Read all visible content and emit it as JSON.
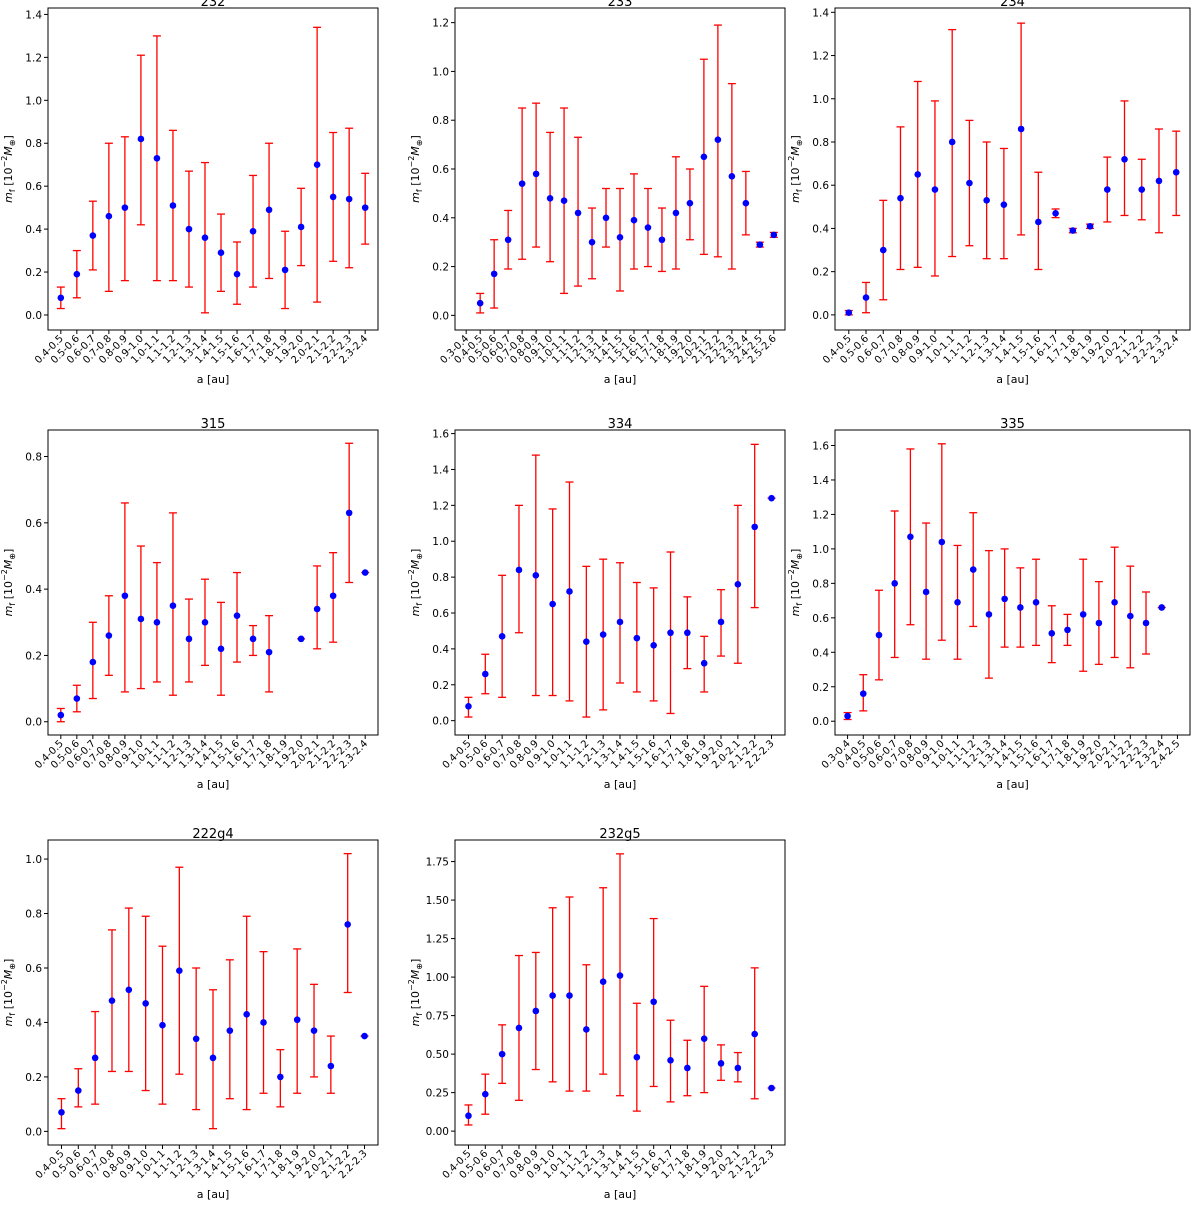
{
  "style": {
    "point_color": "#0000ff",
    "errorbar_color": "#ff0000",
    "axis_color": "#000000"
  },
  "chart_data": [
    {
      "type": "scatter",
      "title": "232",
      "xlabel": "a [au]",
      "ylabel": [
        {
          "t": "m",
          "s": "i"
        },
        {
          "t": "f",
          "s": "sub"
        },
        {
          "t": " [10"
        },
        {
          "t": "−2",
          "s": "sup"
        },
        {
          "t": "M",
          "s": "i"
        },
        {
          "t": "⊕",
          "s": "sub"
        },
        {
          "t": "]"
        }
      ],
      "ylim": [
        -0.07,
        1.43
      ],
      "yticks": [
        0.0,
        0.2,
        0.4,
        0.6,
        0.8,
        1.0,
        1.2,
        1.4
      ],
      "ytick_fmt": 1,
      "categories": [
        "0.4-0.5",
        "0.5-0.6",
        "0.6-0.7",
        "0.7-0.8",
        "0.8-0.9",
        "0.9-1.0",
        "1.0-1.1",
        "1.1-1.2",
        "1.2-1.3",
        "1.3-1.4",
        "1.4-1.5",
        "1.5-1.6",
        "1.6-1.7",
        "1.7-1.8",
        "1.8-1.9",
        "1.9-2.0",
        "2.0-2.1",
        "2.1-2.2",
        "2.2-2.3",
        "2.3-2.4"
      ],
      "values": [
        0.08,
        0.19,
        0.37,
        0.46,
        0.5,
        0.82,
        0.73,
        0.51,
        0.4,
        0.36,
        0.29,
        0.19,
        0.39,
        0.49,
        0.21,
        0.41,
        0.7,
        0.55,
        0.54,
        0.5
      ],
      "lower": [
        0.03,
        0.08,
        0.21,
        0.11,
        0.16,
        0.42,
        0.16,
        0.16,
        0.13,
        0.01,
        0.11,
        0.05,
        0.13,
        0.17,
        0.03,
        0.23,
        0.06,
        0.25,
        0.22,
        0.33
      ],
      "upper": [
        0.13,
        0.3,
        0.53,
        0.8,
        0.83,
        1.21,
        1.3,
        0.86,
        0.67,
        0.71,
        0.47,
        0.34,
        0.65,
        0.8,
        0.39,
        0.59,
        1.34,
        0.85,
        0.87,
        0.66
      ]
    },
    {
      "type": "scatter",
      "title": "233",
      "xlabel": "a [au]",
      "ylabel": [
        {
          "t": "m",
          "s": "i"
        },
        {
          "t": "f",
          "s": "sub"
        },
        {
          "t": " [10"
        },
        {
          "t": "−2",
          "s": "sup"
        },
        {
          "t": "M",
          "s": "i"
        },
        {
          "t": "⊕",
          "s": "sub"
        },
        {
          "t": "]"
        }
      ],
      "ylim": [
        -0.06,
        1.26
      ],
      "yticks": [
        0.0,
        0.2,
        0.4,
        0.6,
        0.8,
        1.0,
        1.2
      ],
      "ytick_fmt": 1,
      "categories": [
        "0.3-0.4",
        "0.4-0.5",
        "0.5-0.6",
        "0.6-0.7",
        "0.7-0.8",
        "0.8-0.9",
        "0.9-1.0",
        "1.0-1.1",
        "1.1-1.2",
        "1.2-1.3",
        "1.3-1.4",
        "1.4-1.5",
        "1.5-1.6",
        "1.6-1.7",
        "1.7-1.8",
        "1.8-1.9",
        "1.9-2.0",
        "2.0-2.1",
        "2.1-2.2",
        "2.2-2.3",
        "2.3-2.4",
        "2.4-2.5",
        "2.5-2.6"
      ],
      "values": [
        null,
        0.05,
        0.17,
        0.31,
        0.54,
        0.58,
        0.48,
        0.47,
        0.42,
        0.3,
        0.4,
        0.32,
        0.39,
        0.36,
        0.31,
        0.42,
        0.46,
        0.65,
        0.72,
        0.57,
        0.46,
        0.29,
        0.33
      ],
      "lower": [
        null,
        0.01,
        0.03,
        0.19,
        0.23,
        0.28,
        0.22,
        0.09,
        0.12,
        0.15,
        0.28,
        0.1,
        0.19,
        0.2,
        0.18,
        0.19,
        0.31,
        0.25,
        0.24,
        0.19,
        0.33,
        0.28,
        0.32
      ],
      "upper": [
        null,
        0.09,
        0.31,
        0.43,
        0.85,
        0.87,
        0.75,
        0.85,
        0.73,
        0.44,
        0.52,
        0.52,
        0.58,
        0.52,
        0.44,
        0.65,
        0.6,
        1.05,
        1.19,
        0.95,
        0.59,
        0.3,
        0.34
      ]
    },
    {
      "type": "scatter",
      "title": "234",
      "xlabel": "a [au]",
      "ylabel": [
        {
          "t": "m",
          "s": "i"
        },
        {
          "t": "f",
          "s": "sub"
        },
        {
          "t": " [10"
        },
        {
          "t": "−2",
          "s": "sup"
        },
        {
          "t": "M",
          "s": "i"
        },
        {
          "t": "⊕",
          "s": "sub"
        },
        {
          "t": "]"
        }
      ],
      "ylim": [
        -0.07,
        1.42
      ],
      "yticks": [
        0.0,
        0.2,
        0.4,
        0.6,
        0.8,
        1.0,
        1.2,
        1.4
      ],
      "ytick_fmt": 1,
      "categories": [
        "0.4-0.5",
        "0.5-0.6",
        "0.6-0.7",
        "0.7-0.8",
        "0.8-0.9",
        "0.9-1.0",
        "1.0-1.1",
        "1.1-1.2",
        "1.2-1.3",
        "1.3-1.4",
        "1.4-1.5",
        "1.5-1.6",
        "1.6-1.7",
        "1.7-1.8",
        "1.8-1.9",
        "1.9-2.0",
        "2.0-2.1",
        "2.1-2.2",
        "2.2-2.3",
        "2.3-2.4"
      ],
      "values": [
        0.01,
        0.08,
        0.3,
        0.54,
        0.65,
        0.58,
        0.8,
        0.61,
        0.53,
        0.51,
        0.86,
        0.43,
        0.47,
        0.39,
        0.41,
        0.58,
        0.72,
        0.58,
        0.62,
        0.66
      ],
      "lower": [
        0.0,
        0.01,
        0.07,
        0.21,
        0.22,
        0.18,
        0.27,
        0.32,
        0.26,
        0.26,
        0.37,
        0.21,
        0.45,
        0.38,
        0.4,
        0.43,
        0.46,
        0.44,
        0.38,
        0.46
      ],
      "upper": [
        0.02,
        0.15,
        0.53,
        0.87,
        1.08,
        0.99,
        1.32,
        0.9,
        0.8,
        0.77,
        1.35,
        0.66,
        0.49,
        0.4,
        0.42,
        0.73,
        0.99,
        0.72,
        0.86,
        0.85
      ]
    },
    {
      "type": "scatter",
      "title": "315",
      "xlabel": "a [au]",
      "ylabel": [
        {
          "t": "m",
          "s": "i"
        },
        {
          "t": "f",
          "s": "sub"
        },
        {
          "t": " [10"
        },
        {
          "t": "−2",
          "s": "sup"
        },
        {
          "t": "M",
          "s": "i"
        },
        {
          "t": "⊕",
          "s": "sub"
        },
        {
          "t": "]"
        }
      ],
      "ylim": [
        -0.04,
        0.88
      ],
      "yticks": [
        0.0,
        0.2,
        0.4,
        0.6,
        0.8
      ],
      "ytick_fmt": 1,
      "categories": [
        "0.4-0.5",
        "0.5-0.6",
        "0.6-0.7",
        "0.7-0.8",
        "0.8-0.9",
        "0.9-1.0",
        "1.0-1.1",
        "1.1-1.2",
        "1.2-1.3",
        "1.3-1.4",
        "1.4-1.5",
        "1.5-1.6",
        "1.6-1.7",
        "1.7-1.8",
        "1.8-1.9",
        "1.9-2.0",
        "2.0-2.1",
        "2.1-2.2",
        "2.2-2.3",
        "2.3-2.4"
      ],
      "values": [
        0.02,
        0.07,
        0.18,
        0.26,
        0.38,
        0.31,
        0.3,
        0.35,
        0.25,
        0.3,
        0.22,
        0.32,
        0.25,
        0.21,
        null,
        0.25,
        0.34,
        0.38,
        0.63,
        0.45
      ],
      "lower": [
        0.0,
        0.03,
        0.07,
        0.14,
        0.09,
        0.1,
        0.12,
        0.08,
        0.12,
        0.17,
        0.08,
        0.18,
        0.2,
        0.09,
        null,
        0.25,
        0.22,
        0.24,
        0.42,
        0.45
      ],
      "upper": [
        0.04,
        0.11,
        0.3,
        0.38,
        0.66,
        0.53,
        0.48,
        0.63,
        0.37,
        0.43,
        0.36,
        0.45,
        0.29,
        0.32,
        null,
        0.25,
        0.47,
        0.51,
        0.84,
        0.45
      ]
    },
    {
      "type": "scatter",
      "title": "334",
      "xlabel": "a [au]",
      "ylabel": [
        {
          "t": "m",
          "s": "i"
        },
        {
          "t": "f",
          "s": "sub"
        },
        {
          "t": " [10"
        },
        {
          "t": "−2",
          "s": "sup"
        },
        {
          "t": "M",
          "s": "i"
        },
        {
          "t": "⊕",
          "s": "sub"
        },
        {
          "t": "]"
        }
      ],
      "ylim": [
        -0.08,
        1.62
      ],
      "yticks": [
        0.0,
        0.2,
        0.4,
        0.6,
        0.8,
        1.0,
        1.2,
        1.4,
        1.6
      ],
      "ytick_fmt": 1,
      "categories": [
        "0.4-0.5",
        "0.5-0.6",
        "0.6-0.7",
        "0.7-0.8",
        "0.8-0.9",
        "0.9-1.0",
        "1.0-1.1",
        "1.1-1.2",
        "1.2-1.3",
        "1.3-1.4",
        "1.4-1.5",
        "1.5-1.6",
        "1.6-1.7",
        "1.7-1.8",
        "1.8-1.9",
        "1.9-2.0",
        "2.0-2.1",
        "2.1-2.2",
        "2.2-2.3"
      ],
      "values": [
        0.08,
        0.26,
        0.47,
        0.84,
        0.81,
        0.65,
        0.72,
        0.44,
        0.48,
        0.55,
        0.46,
        0.42,
        0.49,
        0.49,
        0.32,
        0.55,
        0.76,
        1.08,
        1.24
      ],
      "lower": [
        0.02,
        0.15,
        0.13,
        0.49,
        0.14,
        0.14,
        0.11,
        0.02,
        0.06,
        0.21,
        0.16,
        0.11,
        0.04,
        0.29,
        0.16,
        0.36,
        0.32,
        0.63,
        1.24
      ],
      "upper": [
        0.13,
        0.37,
        0.81,
        1.2,
        1.48,
        1.18,
        1.33,
        0.86,
        0.9,
        0.88,
        0.77,
        0.74,
        0.94,
        0.69,
        0.47,
        0.73,
        1.2,
        1.54,
        1.24
      ]
    },
    {
      "type": "scatter",
      "title": "335",
      "xlabel": "a [au]",
      "ylabel": [
        {
          "t": "m",
          "s": "i"
        },
        {
          "t": "f",
          "s": "sub"
        },
        {
          "t": " [10"
        },
        {
          "t": "−2",
          "s": "sup"
        },
        {
          "t": "M",
          "s": "i"
        },
        {
          "t": "⊕",
          "s": "sub"
        },
        {
          "t": "]"
        }
      ],
      "ylim": [
        -0.08,
        1.69
      ],
      "yticks": [
        0.0,
        0.2,
        0.4,
        0.6,
        0.8,
        1.0,
        1.2,
        1.4,
        1.6
      ],
      "ytick_fmt": 1,
      "categories": [
        "0.3-0.4",
        "0.4-0.5",
        "0.5-0.6",
        "0.6-0.7",
        "0.7-0.8",
        "0.8-0.9",
        "0.9-1.0",
        "1.0-1.1",
        "1.1-1.2",
        "1.2-1.3",
        "1.3-1.4",
        "1.4-1.5",
        "1.5-1.6",
        "1.6-1.7",
        "1.7-1.8",
        "1.8-1.9",
        "1.9-2.0",
        "2.0-2.1",
        "2.1-2.2",
        "2.2-2.3",
        "2.3-2.4",
        "2.4-2.5"
      ],
      "values": [
        0.03,
        0.16,
        0.5,
        0.8,
        1.07,
        0.75,
        1.04,
        0.69,
        0.88,
        0.62,
        0.71,
        0.66,
        0.69,
        0.51,
        0.53,
        0.62,
        0.57,
        0.69,
        0.61,
        0.57,
        0.66,
        null
      ],
      "lower": [
        0.01,
        0.06,
        0.24,
        0.37,
        0.56,
        0.36,
        0.47,
        0.36,
        0.55,
        0.25,
        0.43,
        0.43,
        0.44,
        0.34,
        0.44,
        0.29,
        0.33,
        0.37,
        0.31,
        0.39,
        0.66,
        null
      ],
      "upper": [
        0.05,
        0.27,
        0.76,
        1.22,
        1.58,
        1.15,
        1.61,
        1.02,
        1.21,
        0.99,
        1.0,
        0.89,
        0.94,
        0.67,
        0.62,
        0.94,
        0.81,
        1.01,
        0.9,
        0.75,
        0.66,
        null
      ]
    },
    {
      "type": "scatter",
      "title": "222g4",
      "xlabel": "a [au]",
      "ylabel": [
        {
          "t": "m",
          "s": "i"
        },
        {
          "t": "f",
          "s": "sub"
        },
        {
          "t": " [10"
        },
        {
          "t": "−2",
          "s": "sup"
        },
        {
          "t": "M",
          "s": "i"
        },
        {
          "t": "⊕",
          "s": "sub"
        },
        {
          "t": "]"
        }
      ],
      "ylim": [
        -0.05,
        1.07
      ],
      "yticks": [
        0.0,
        0.2,
        0.4,
        0.6,
        0.8,
        1.0
      ],
      "ytick_fmt": 1,
      "categories": [
        "0.4-0.5",
        "0.5-0.6",
        "0.6-0.7",
        "0.7-0.8",
        "0.8-0.9",
        "0.9-1.0",
        "1.0-1.1",
        "1.1-1.2",
        "1.2-1.3",
        "1.3-1.4",
        "1.4-1.5",
        "1.5-1.6",
        "1.6-1.7",
        "1.7-1.8",
        "1.8-1.9",
        "1.9-2.0",
        "2.0-2.1",
        "2.1-2.2",
        "2.2-2.3"
      ],
      "values": [
        0.07,
        0.15,
        0.27,
        0.48,
        0.52,
        0.47,
        0.39,
        0.59,
        0.34,
        0.27,
        0.37,
        0.43,
        0.4,
        0.2,
        0.41,
        0.37,
        0.24,
        0.76,
        0.35
      ],
      "lower": [
        0.01,
        0.09,
        0.1,
        0.22,
        0.22,
        0.15,
        0.1,
        0.21,
        0.08,
        0.01,
        0.12,
        0.08,
        0.14,
        0.09,
        0.14,
        0.2,
        0.14,
        0.51,
        0.35
      ],
      "upper": [
        0.12,
        0.23,
        0.44,
        0.74,
        0.82,
        0.79,
        0.68,
        0.97,
        0.6,
        0.52,
        0.63,
        0.79,
        0.66,
        0.3,
        0.67,
        0.54,
        0.35,
        1.02,
        0.35
      ]
    },
    {
      "type": "scatter",
      "title": "232g5",
      "xlabel": "a [au]",
      "ylabel": [
        {
          "t": "m",
          "s": "i"
        },
        {
          "t": "f",
          "s": "sub"
        },
        {
          "t": " [10"
        },
        {
          "t": "−2",
          "s": "sup"
        },
        {
          "t": "M",
          "s": "i"
        },
        {
          "t": "⊕",
          "s": "sub"
        },
        {
          "t": "]"
        }
      ],
      "ylim": [
        -0.09,
        1.89
      ],
      "yticks": [
        0.0,
        0.25,
        0.5,
        0.75,
        1.0,
        1.25,
        1.5,
        1.75
      ],
      "ytick_fmt": 2,
      "categories": [
        "0.4-0.5",
        "0.5-0.6",
        "0.6-0.7",
        "0.7-0.8",
        "0.8-0.9",
        "0.9-1.0",
        "1.0-1.1",
        "1.1-1.2",
        "1.2-1.3",
        "1.3-1.4",
        "1.4-1.5",
        "1.5-1.6",
        "1.6-1.7",
        "1.7-1.8",
        "1.8-1.9",
        "1.9-2.0",
        "2.0-2.1",
        "2.1-2.2",
        "2.2-2.3"
      ],
      "values": [
        0.1,
        0.24,
        0.5,
        0.67,
        0.78,
        0.88,
        0.88,
        0.66,
        0.97,
        1.01,
        0.48,
        0.84,
        0.46,
        0.41,
        0.6,
        0.44,
        0.41,
        0.63,
        0.28
      ],
      "lower": [
        0.04,
        0.11,
        0.31,
        0.2,
        0.4,
        0.32,
        0.26,
        0.26,
        0.37,
        0.23,
        0.13,
        0.29,
        0.19,
        0.23,
        0.25,
        0.33,
        0.32,
        0.21,
        0.28
      ],
      "upper": [
        0.17,
        0.37,
        0.69,
        1.14,
        1.16,
        1.45,
        1.52,
        1.08,
        1.58,
        1.8,
        0.83,
        1.38,
        0.72,
        0.59,
        0.94,
        0.56,
        0.51,
        1.06,
        0.28
      ]
    }
  ]
}
